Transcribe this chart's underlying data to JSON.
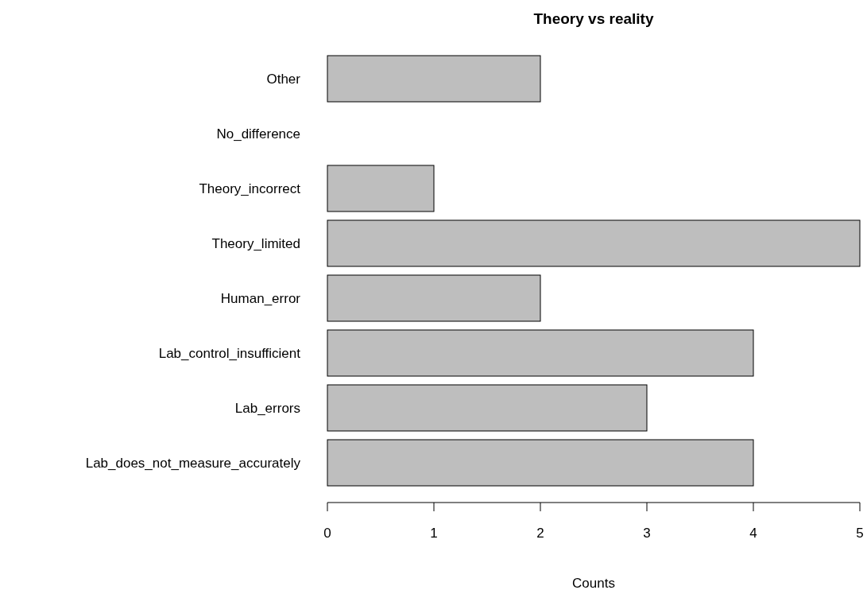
{
  "chart_data": {
    "type": "bar",
    "title": "Theory vs reality",
    "xlabel": "Counts",
    "orientation": "horizontal",
    "categories": [
      "Other",
      "No_difference",
      "Theory_incorrect",
      "Theory_limited",
      "Human_error",
      "Lab_control_insufficient",
      "Lab_errors",
      "Lab_does_not_measure_accurately"
    ],
    "values": [
      2,
      0,
      1,
      5,
      2,
      4,
      3,
      4
    ],
    "color": "#bebebe",
    "xlim": [
      0,
      5
    ],
    "xticks": [
      0,
      1,
      2,
      3,
      4,
      5
    ],
    "grid": false
  }
}
